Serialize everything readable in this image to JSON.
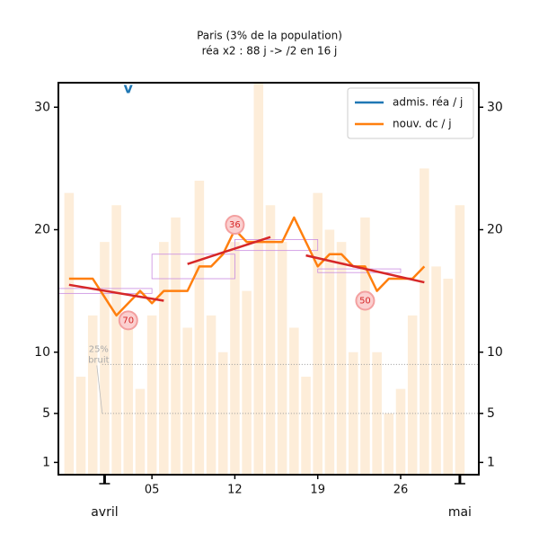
{
  "chart_data": {
    "type": "line",
    "title": "Paris (3% de la population)",
    "subtitle": "réa x2 : 88 j -> /2 en 16 j",
    "xlim": [
      -2.9,
      32.6
    ],
    "ylim": [
      0,
      32
    ],
    "yticks": [
      1,
      5,
      10,
      20,
      30
    ],
    "xticks": [
      {
        "value": 5,
        "label": "05"
      },
      12,
      19,
      26
    ],
    "month_ticks": [
      {
        "value": 1,
        "label": "avril"
      },
      {
        "value": 31,
        "label": "mai"
      }
    ],
    "legend": "upper right",
    "bars": {
      "color": "#fde9cf",
      "x": [
        -2,
        -1,
        0,
        1,
        2,
        3,
        4,
        5,
        6,
        7,
        8,
        9,
        10,
        11,
        12,
        13,
        14,
        15,
        16,
        17,
        18,
        19,
        20,
        21,
        22,
        23,
        24,
        25,
        26,
        27,
        28,
        29,
        30,
        31
      ],
      "values": [
        23,
        8,
        13,
        19,
        22,
        13,
        7,
        13,
        19,
        21,
        12,
        24,
        13,
        10,
        19,
        15,
        32,
        22,
        19,
        12,
        8,
        23,
        20,
        19,
        10,
        21,
        10,
        5,
        7,
        13,
        25,
        17,
        16,
        22
      ]
    },
    "series": [
      {
        "name": "admis. réa / j",
        "color": "#1f77b4",
        "x": [],
        "values": []
      },
      {
        "name": "nouv. dc / j",
        "color": "#ff7f0e",
        "x": [
          -2,
          0,
          1,
          2,
          3,
          4,
          5,
          6,
          7,
          8,
          9,
          10,
          11,
          12,
          13,
          14,
          15,
          16,
          17,
          18,
          19,
          20,
          21,
          22,
          23,
          24,
          25,
          26,
          27,
          28
        ],
        "values": [
          16,
          16,
          14.5,
          13,
          14,
          15,
          14,
          15,
          15,
          15,
          17,
          17,
          18,
          20,
          19,
          19,
          19,
          19,
          21,
          19,
          17,
          18,
          18,
          17,
          17,
          15,
          16,
          16,
          16,
          17
        ]
      }
    ],
    "trends": [
      {
        "color": "#d62728",
        "x": [
          -2,
          6
        ],
        "values": [
          15.5,
          14.2
        ],
        "label": 70,
        "label_x": 3,
        "label_y": 12.6
      },
      {
        "color": "#d62728",
        "x": [
          8,
          15
        ],
        "values": [
          17.2,
          19.4
        ],
        "label": 36,
        "label_x": 12,
        "label_y": 20.4
      },
      {
        "color": "#d62728",
        "x": [
          18,
          28
        ],
        "values": [
          17.9,
          15.7
        ],
        "label": 50,
        "label_x": 23,
        "label_y": 14.2
      }
    ],
    "boxes": [
      {
        "x": [
          -2.9,
          5
        ],
        "y": [
          14.8,
          15.2
        ]
      },
      {
        "x": [
          5,
          12
        ],
        "y": [
          16,
          18
        ]
      },
      {
        "x": [
          12,
          19
        ],
        "y": [
          18.3,
          19.2
        ]
      },
      {
        "x": [
          19,
          26
        ],
        "y": [
          16.5,
          16.8
        ]
      }
    ],
    "noise": {
      "lines": [
        9,
        5
      ],
      "text": [
        "25%",
        "bruit"
      ],
      "x": 0.5,
      "y": 9.8
    },
    "marker": {
      "text": "v",
      "x": 3
    }
  }
}
